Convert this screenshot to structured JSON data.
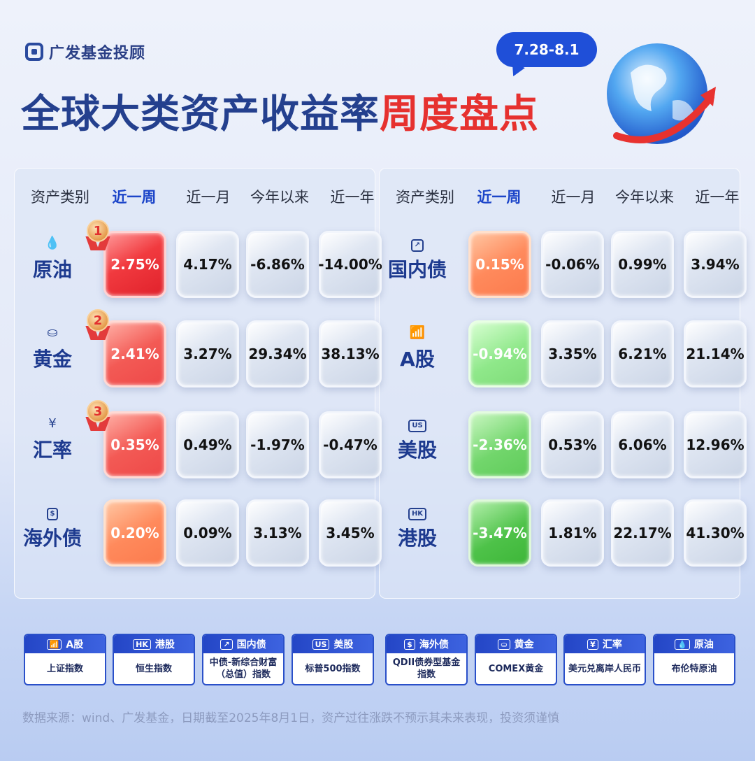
{
  "brand": {
    "name": "广发基金投顾"
  },
  "date_range": "7.28-8.1",
  "title": {
    "part1": "全球大类资产收益率",
    "part2": "周度盘点"
  },
  "headers": [
    "资产类别",
    "近一周",
    "近一月",
    "今年以来",
    "近一年"
  ],
  "left_assets": [
    {
      "icon": "water-drop-icon",
      "glyph": "💧",
      "name": "原油",
      "rank": "1",
      "week": "2.75%",
      "month": "4.17%",
      "ytd": "-6.86%",
      "year": "-14.00%",
      "tone": "red"
    },
    {
      "icon": "gold-bar-icon",
      "glyph": "⛀",
      "name": "黄金",
      "rank": "2",
      "week": "2.41%",
      "month": "3.27%",
      "ytd": "29.34%",
      "year": "38.13%",
      "tone": "red2"
    },
    {
      "icon": "yen-icon",
      "glyph": "¥",
      "name": "汇率",
      "rank": "3",
      "week": "0.35%",
      "month": "0.49%",
      "ytd": "-1.97%",
      "year": "-0.47%",
      "tone": "red2"
    },
    {
      "icon": "dollar-box-icon",
      "glyph": "$",
      "name": "海外债",
      "rank": "",
      "week": "0.20%",
      "month": "0.09%",
      "ytd": "3.13%",
      "year": "3.45%",
      "tone": "orange"
    }
  ],
  "right_assets": [
    {
      "icon": "trend-chart-icon",
      "glyph": "↗",
      "name": "国内债",
      "week": "0.15%",
      "month": "-0.06%",
      "ytd": "0.99%",
      "year": "3.94%",
      "tone": "orange"
    },
    {
      "icon": "bar-chart-up-icon",
      "glyph": "📶",
      "name": "A股",
      "week": "-0.94%",
      "month": "3.35%",
      "ytd": "6.21%",
      "year": "21.14%",
      "tone": "green1"
    },
    {
      "icon": "us-badge-icon",
      "glyph": "US",
      "name": "美股",
      "week": "-2.36%",
      "month": "0.53%",
      "ytd": "6.06%",
      "year": "12.96%",
      "tone": "green2"
    },
    {
      "icon": "hk-badge-icon",
      "glyph": "HK",
      "name": "港股",
      "week": "-3.47%",
      "month": "1.81%",
      "ytd": "22.17%",
      "year": "41.30%",
      "tone": "green3"
    }
  ],
  "legend": [
    {
      "icon": "bar-chart-up-icon",
      "glyph": "📶",
      "name": "A股",
      "desc": "上证指数"
    },
    {
      "icon": "hk-badge-icon",
      "glyph": "HK",
      "name": "港股",
      "desc": "恒生指数"
    },
    {
      "icon": "trend-chart-icon",
      "glyph": "↗",
      "name": "国内债",
      "desc": "中债-新综合财富（总值）指数"
    },
    {
      "icon": "us-badge-icon",
      "glyph": "US",
      "name": "美股",
      "desc": "标普500指数"
    },
    {
      "icon": "dollar-box-icon",
      "glyph": "$",
      "name": "海外债",
      "desc": "QDII债券型基金指数"
    },
    {
      "icon": "gold-bar-icon",
      "glyph": "⛀",
      "name": "黄金",
      "desc": "COMEX黄金"
    },
    {
      "icon": "yen-icon",
      "glyph": "¥",
      "name": "汇率",
      "desc": "美元兑离岸人民币"
    },
    {
      "icon": "water-drop-icon",
      "glyph": "💧",
      "name": "原油",
      "desc": "布伦特原油"
    }
  ],
  "footer": "数据来源：wind、广发基金，日期截至2025年8月1日，资产过往涨跌不预示其未来表现，投资须谨慎"
}
